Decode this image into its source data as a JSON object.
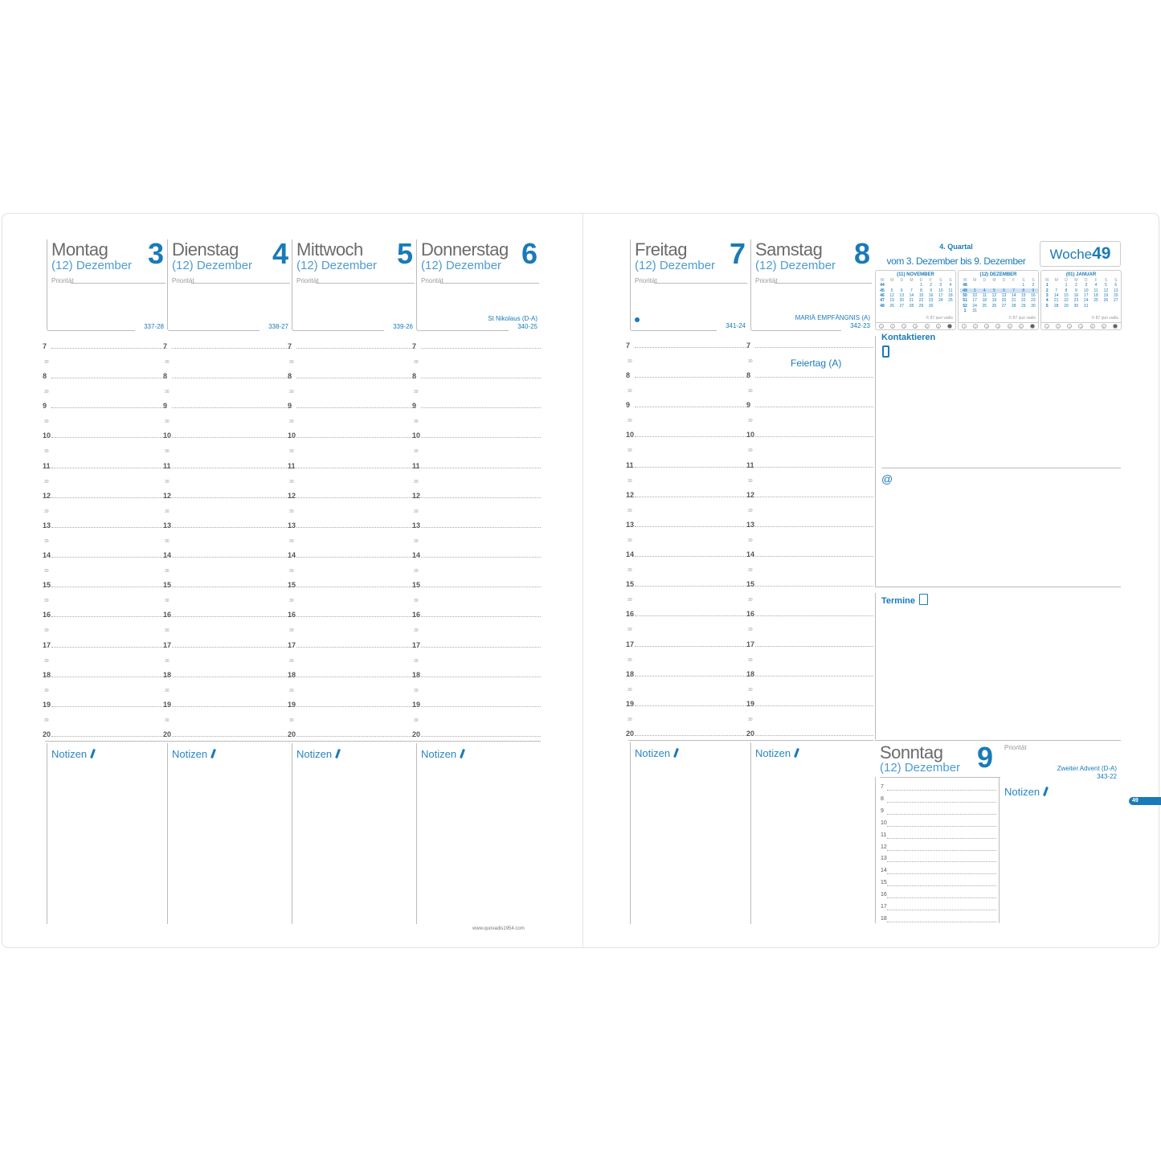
{
  "days_left": [
    {
      "name": "Montag",
      "month": "(12) Dezember",
      "num": "3",
      "prio": "Priorität",
      "code": "337-28",
      "holiday": ""
    },
    {
      "name": "Dienstag",
      "month": "(12) Dezember",
      "num": "4",
      "prio": "Priorität",
      "code": "338-27",
      "holiday": ""
    },
    {
      "name": "Mittwoch",
      "month": "(12) Dezember",
      "num": "5",
      "prio": "Priorität",
      "code": "339-26",
      "holiday": ""
    },
    {
      "name": "Donnerstag",
      "month": "(12) Dezember",
      "num": "6",
      "prio": "Priorität",
      "code": "340-25",
      "holiday": "St Nikolaus (D-A)"
    }
  ],
  "days_right": [
    {
      "name": "Freitag",
      "month": "(12) Dezember",
      "num": "7",
      "prio": "Priorität",
      "code": "341-24",
      "holiday": ""
    },
    {
      "name": "Samstag",
      "month": "(12) Dezember",
      "num": "8",
      "prio": "Priorität",
      "code": "342-23",
      "holiday": "MARIÄ EMPFÄNGNIS (A)"
    }
  ],
  "hours": [
    "7",
    "8",
    "9",
    "10",
    "11",
    "12",
    "13",
    "14",
    "15",
    "16",
    "17",
    "18",
    "19",
    "20"
  ],
  "half_label": "30",
  "notes_label": "Notizen",
  "feiertag": "Feiertag (A)",
  "quarter": "4. Quartal",
  "range": "vom 3. Dezember bis 9. Dezember",
  "week": {
    "label": "Woche",
    "num": "49"
  },
  "tab_week": "49",
  "footer_url": "www.quovadis1954.com",
  "mini_cal": {
    "headers": [
      "W",
      "M",
      "D",
      "M",
      "D",
      "F",
      "S",
      "S"
    ],
    "copyright": "© 87 quo vadis",
    "circles": [
      "1",
      "2",
      "3",
      "4",
      "5",
      "6",
      "7"
    ],
    "months": [
      {
        "title": "(11) NOVEMBER",
        "rows": [
          [
            "44",
            "",
            "",
            "",
            "1",
            "2",
            "3",
            "4"
          ],
          [
            "45",
            "5",
            "6",
            "7",
            "8",
            "9",
            "10",
            "11"
          ],
          [
            "46",
            "12",
            "13",
            "14",
            "15",
            "16",
            "17",
            "18"
          ],
          [
            "47",
            "19",
            "20",
            "21",
            "22",
            "23",
            "24",
            "25"
          ],
          [
            "48",
            "26",
            "27",
            "28",
            "29",
            "30",
            "",
            ""
          ]
        ]
      },
      {
        "title": "(12) DEZEMBER",
        "highlight": "49",
        "rows": [
          [
            "48",
            "",
            "",
            "",
            "",
            "",
            "1",
            "2"
          ],
          [
            "49",
            "3",
            "4",
            "5",
            "6",
            "7",
            "8",
            "9"
          ],
          [
            "50",
            "10",
            "11",
            "12",
            "13",
            "14",
            "15",
            "16"
          ],
          [
            "51",
            "17",
            "18",
            "19",
            "20",
            "21",
            "22",
            "23"
          ],
          [
            "52",
            "24",
            "25",
            "26",
            "27",
            "28",
            "29",
            "30"
          ],
          [
            "1",
            "31",
            "",
            "",
            "",
            "",
            "",
            ""
          ]
        ]
      },
      {
        "title": "(01) JANUAR",
        "rows": [
          [
            "1",
            "",
            "1",
            "2",
            "3",
            "4",
            "5",
            "6"
          ],
          [
            "2",
            "7",
            "8",
            "9",
            "10",
            "11",
            "12",
            "13"
          ],
          [
            "3",
            "14",
            "15",
            "16",
            "17",
            "18",
            "19",
            "20"
          ],
          [
            "4",
            "21",
            "22",
            "23",
            "24",
            "25",
            "26",
            "27"
          ],
          [
            "5",
            "28",
            "29",
            "30",
            "31",
            "",
            "",
            ""
          ]
        ]
      }
    ]
  },
  "contacts": {
    "title": "Kontaktieren",
    "phone_icon": "phone-icon",
    "email_symbol": "@"
  },
  "appointments": {
    "title": "Termine",
    "icon": "notepad-icon"
  },
  "sunday": {
    "name": "Sonntag",
    "month": "(12) Dezember",
    "num": "9",
    "prio": "Priorität",
    "holiday": "Zweiter Advent (D-A)",
    "code": "343-22",
    "hours": [
      "7",
      "8",
      "9",
      "10",
      "11",
      "12",
      "13",
      "14",
      "15",
      "16",
      "17",
      "18"
    ]
  },
  "colors": {
    "accent": "#1a7ab8",
    "text": "#6b6b6b"
  }
}
